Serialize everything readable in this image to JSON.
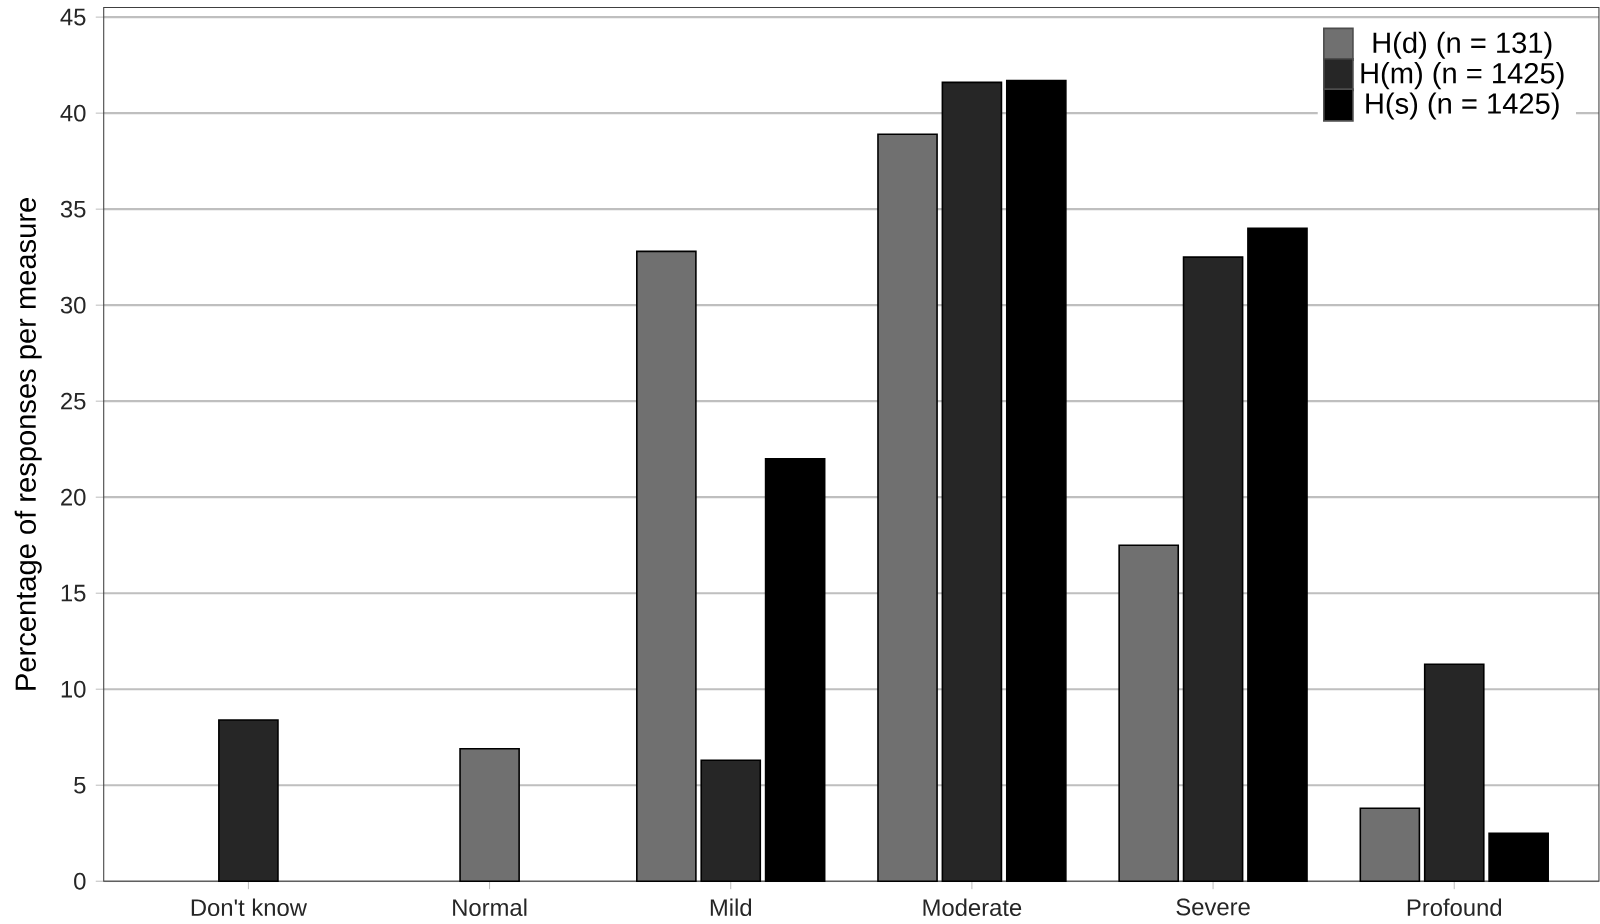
{
  "chart_data": {
    "type": "bar",
    "ylabel": "Percentage of responses per measure",
    "categories": [
      "Don't know",
      "Normal",
      "Mild",
      "Moderate",
      "Severe",
      "Profound"
    ],
    "series": [
      {
        "name": "H(d) (n = 131)",
        "color": "#707070",
        "values": [
          null,
          6.9,
          32.8,
          38.9,
          17.5,
          3.8
        ]
      },
      {
        "name": "H(m) (n = 1425)",
        "color": "#262626",
        "values": [
          8.4,
          null,
          6.3,
          41.6,
          32.5,
          11.3
        ]
      },
      {
        "name": "H(s) (n = 1425)",
        "color": "#000000",
        "values": [
          null,
          null,
          22.0,
          41.7,
          34.0,
          2.5
        ]
      }
    ],
    "ylim": [
      0,
      45.5
    ],
    "yticks": [
      0,
      5,
      10,
      15,
      20,
      25,
      30,
      35,
      40,
      45
    ],
    "grid": "y",
    "legend": "top right"
  }
}
